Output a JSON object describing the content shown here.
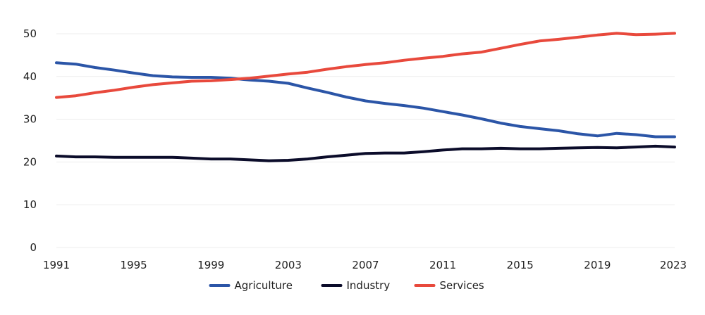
{
  "chart_data": {
    "type": "line",
    "title": "",
    "xlabel": "",
    "ylabel": "",
    "ylim": [
      0,
      50
    ],
    "yticks": [
      0,
      10,
      20,
      30,
      40,
      50
    ],
    "xlim": [
      1991,
      2023
    ],
    "xticks": [
      1991,
      1995,
      1999,
      2003,
      2007,
      2011,
      2015,
      2019,
      2023
    ],
    "grid": true,
    "legend_position": "bottom-center",
    "x": [
      1991,
      1992,
      1993,
      1994,
      1995,
      1996,
      1997,
      1998,
      1999,
      2000,
      2001,
      2002,
      2003,
      2004,
      2005,
      2006,
      2007,
      2008,
      2009,
      2010,
      2011,
      2012,
      2013,
      2014,
      2015,
      2016,
      2017,
      2018,
      2019,
      2020,
      2021,
      2022,
      2023
    ],
    "series": [
      {
        "name": "Agriculture",
        "color": "#2b55a7",
        "values": [
          43.2,
          42.9,
          42.1,
          41.5,
          40.8,
          40.2,
          39.9,
          39.8,
          39.8,
          39.6,
          39.2,
          38.9,
          38.4,
          37.3,
          36.3,
          35.2,
          34.3,
          33.7,
          33.2,
          32.6,
          31.8,
          31.0,
          30.1,
          29.1,
          28.3,
          27.8,
          27.3,
          26.6,
          26.1,
          26.7,
          26.4,
          25.9,
          25.9
        ]
      },
      {
        "name": "Industry",
        "color": "#0b0c2a",
        "values": [
          21.4,
          21.2,
          21.2,
          21.1,
          21.1,
          21.1,
          21.1,
          20.9,
          20.7,
          20.7,
          20.5,
          20.3,
          20.4,
          20.7,
          21.2,
          21.6,
          22.0,
          22.1,
          22.1,
          22.4,
          22.8,
          23.1,
          23.1,
          23.2,
          23.1,
          23.1,
          23.2,
          23.3,
          23.4,
          23.3,
          23.5,
          23.7,
          23.5
        ]
      },
      {
        "name": "Services",
        "color": "#e8493c",
        "values": [
          35.1,
          35.5,
          36.2,
          36.8,
          37.5,
          38.1,
          38.5,
          38.9,
          39.0,
          39.3,
          39.6,
          40.1,
          40.6,
          41.0,
          41.7,
          42.3,
          42.8,
          43.2,
          43.8,
          44.3,
          44.7,
          45.3,
          45.7,
          46.6,
          47.5,
          48.3,
          48.7,
          49.2,
          49.7,
          50.1,
          49.8,
          49.9,
          50.1
        ]
      }
    ]
  }
}
